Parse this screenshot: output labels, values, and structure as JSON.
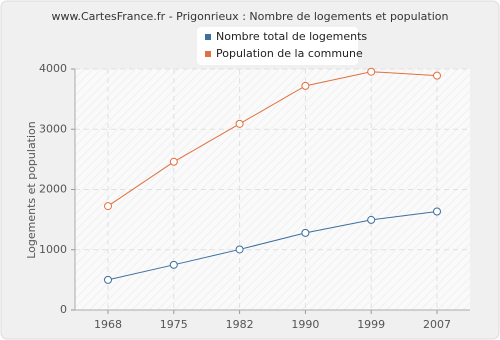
{
  "chart_data": {
    "type": "line",
    "title": "www.CartesFrance.fr - Prigonrieux : Nombre de logements et population",
    "y_label": "Logements et population",
    "categories": [
      "1968",
      "1975",
      "1982",
      "1990",
      "1999",
      "2007"
    ],
    "series": [
      {
        "name": "Nombre total de logements",
        "color": "#3d6fa0",
        "values": [
          500,
          750,
          1005,
          1280,
          1495,
          1635
        ]
      },
      {
        "name": "Population de la commune",
        "color": "#e0703f",
        "values": [
          1725,
          2460,
          3090,
          3720,
          3955,
          3890
        ]
      }
    ],
    "ylim": [
      0,
      4000
    ],
    "yticks": [
      0,
      1000,
      2000,
      3000,
      4000
    ],
    "grid": true,
    "legend": "top"
  }
}
